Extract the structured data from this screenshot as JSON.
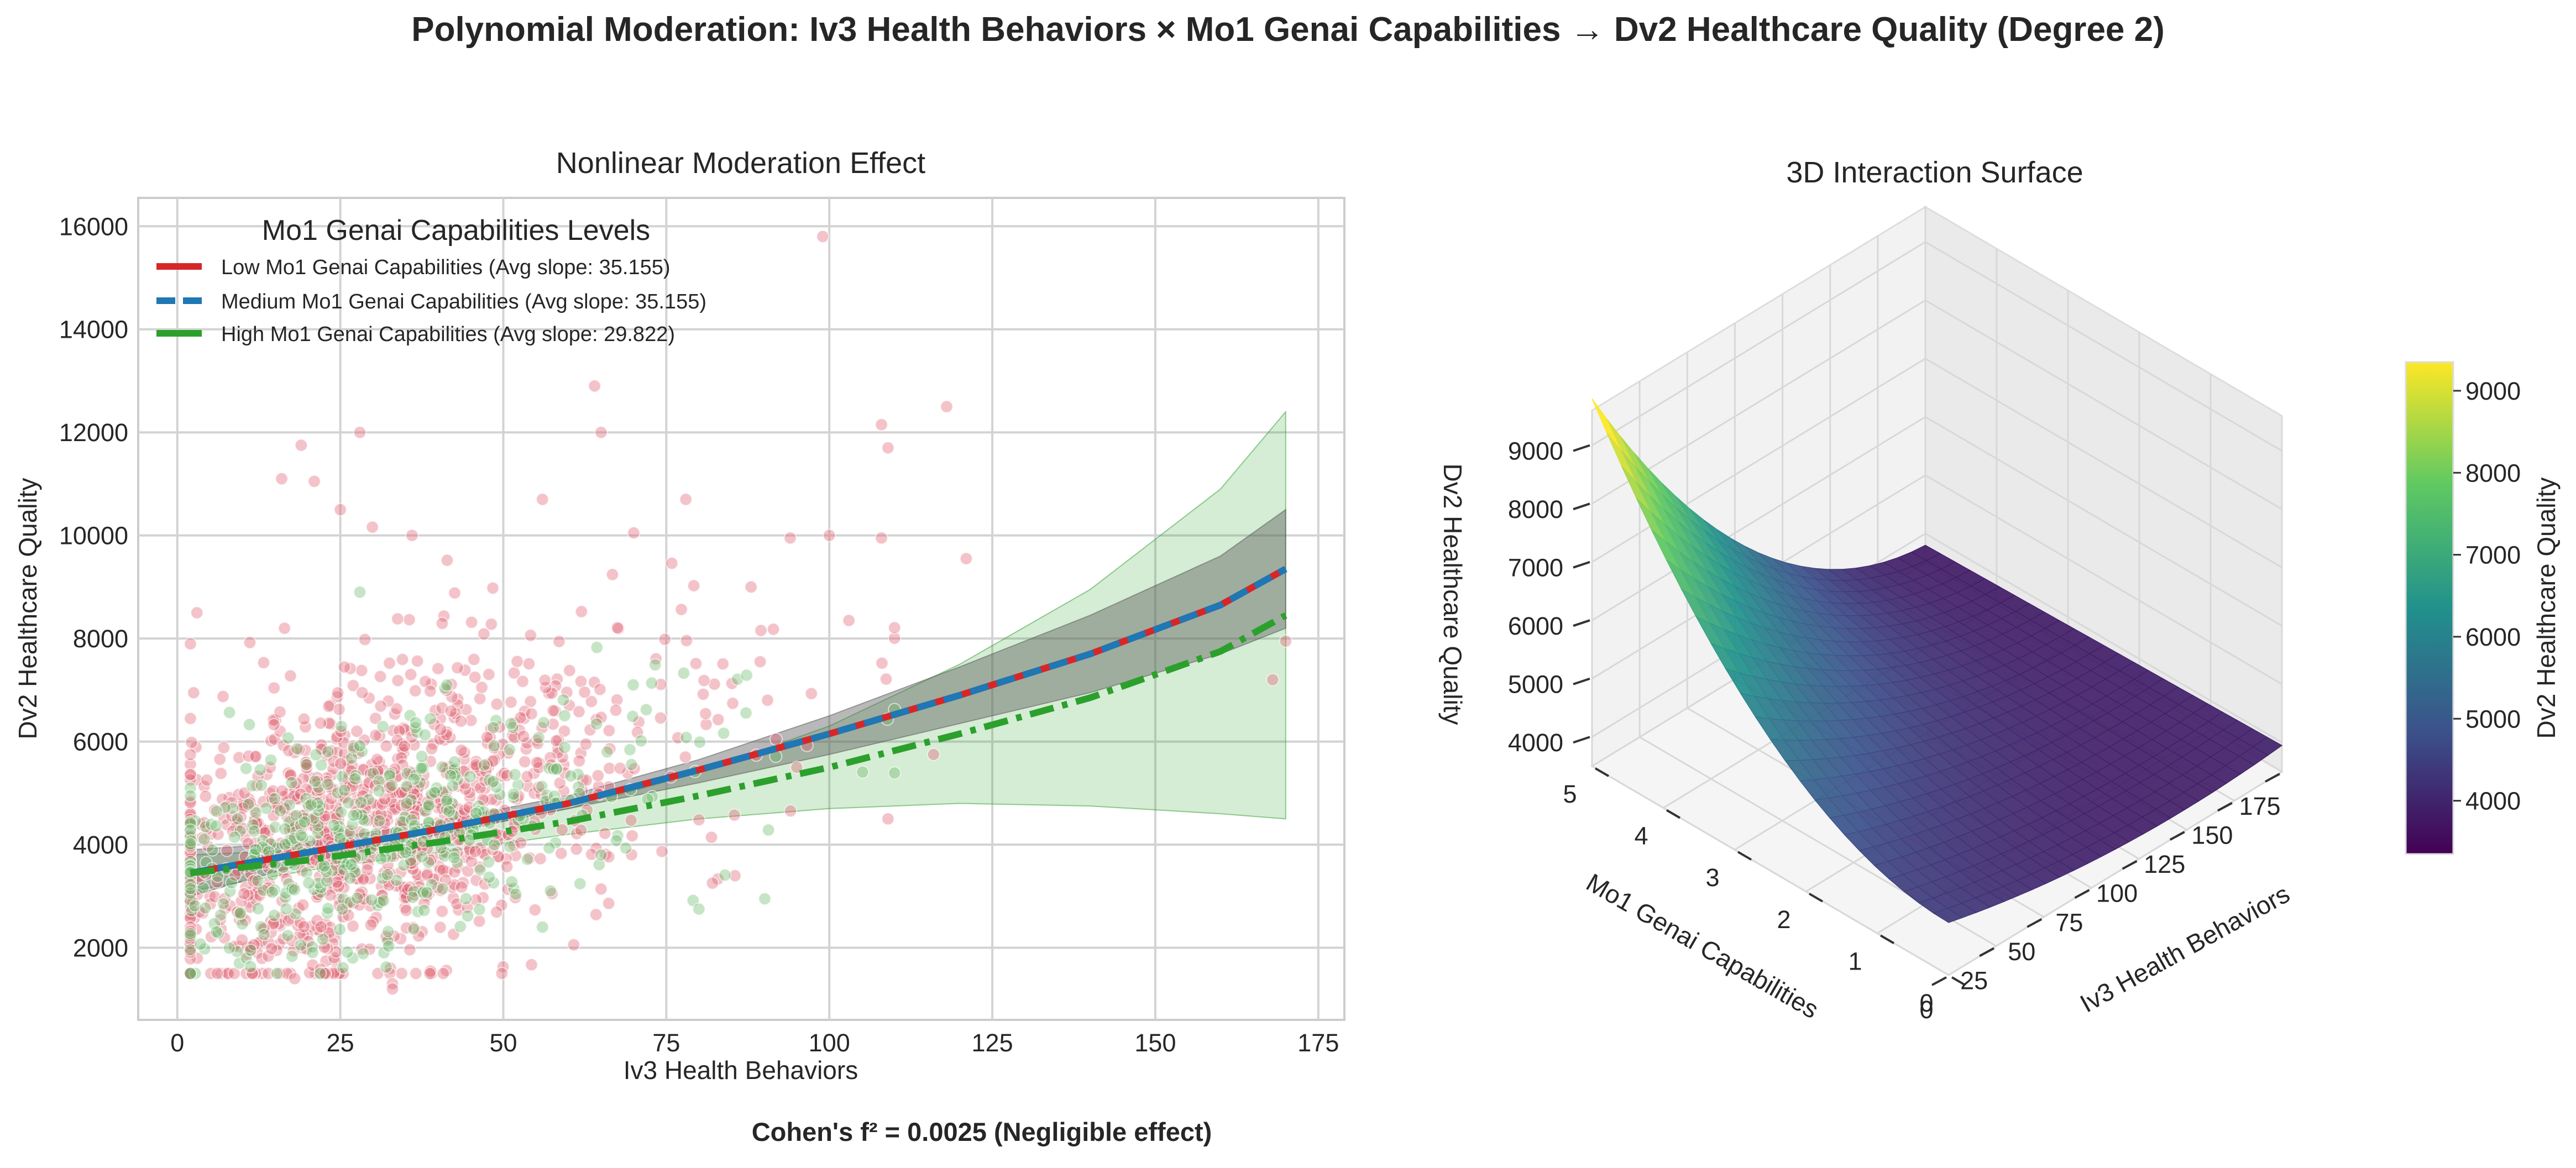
{
  "figure": {
    "title": "Polynomial Moderation: Iv3 Health Behaviors × Mo1 Genai Capabilities → Dv2 Healthcare Quality (Degree 2)",
    "footer": "Cohen's f² = 0.0025 (Negligible effect)"
  },
  "chart_data": [
    {
      "type": "line",
      "title": "Nonlinear Moderation Effect",
      "xlabel": "Iv3 Health Behaviors",
      "ylabel": "Dv2 Healthcare Quality",
      "xlim": [
        -6,
        179
      ],
      "ylim": [
        600,
        16550
      ],
      "xticks": [
        0,
        25,
        50,
        75,
        100,
        125,
        150,
        175
      ],
      "yticks": [
        2000,
        4000,
        6000,
        8000,
        10000,
        12000,
        14000,
        16000
      ],
      "grid": true,
      "legend": {
        "title": "Mo1 Genai Capabilities Levels",
        "placement": "upper-left"
      },
      "series": [
        {
          "name": "Low Mo1 Genai Capabilities (Avg slope: 35.155)",
          "color": "#d62728",
          "dash": "solid",
          "x": [
            2,
            20,
            40,
            60,
            80,
            100,
            120,
            140,
            160,
            170
          ],
          "y": [
            3450,
            3850,
            4300,
            4800,
            5450,
            6150,
            6900,
            7700,
            8650,
            9350
          ],
          "ci_lower": [
            3000,
            3650,
            4200,
            4700,
            5200,
            5750,
            6350,
            6950,
            7700,
            8200
          ],
          "ci_upper": [
            3900,
            4050,
            4450,
            4950,
            5650,
            6500,
            7450,
            8450,
            9600,
            10500
          ]
        },
        {
          "name": "Medium Mo1 Genai Capabilities (Avg slope: 35.155)",
          "color": "#1f77b4",
          "dash": "dashed",
          "x": [
            2,
            20,
            40,
            60,
            80,
            100,
            120,
            140,
            160,
            170
          ],
          "y": [
            3450,
            3850,
            4300,
            4800,
            5450,
            6150,
            6900,
            7700,
            8650,
            9350
          ]
        },
        {
          "name": "High Mo1 Genai Capabilities (Avg slope: 29.822)",
          "color": "#2ca02c",
          "dash": "dashdot",
          "x": [
            2,
            20,
            40,
            60,
            80,
            100,
            120,
            140,
            160,
            170
          ],
          "y": [
            3450,
            3700,
            4050,
            4450,
            4950,
            5500,
            6150,
            6850,
            7750,
            8450
          ],
          "ci_lower": [
            3100,
            3500,
            3850,
            4200,
            4500,
            4700,
            4800,
            4750,
            4600,
            4500
          ],
          "ci_upper": [
            3800,
            3900,
            4250,
            4700,
            5400,
            6300,
            7500,
            8950,
            10900,
            12400
          ]
        }
      ],
      "scatter_groups": [
        {
          "name": "Low",
          "color": "#e06070",
          "count": 1100,
          "outliers": [
            [
              99,
              15800
            ],
            [
              64,
              12900
            ],
            [
              28,
              12000
            ],
            [
              65,
              12000
            ],
            [
              108,
              12150
            ],
            [
              118,
              12500
            ],
            [
              109,
              11700
            ],
            [
              19,
              11750
            ],
            [
              21,
              11050
            ],
            [
              16,
              11100
            ],
            [
              56,
              10700
            ],
            [
              25,
              10500
            ],
            [
              78,
              10700
            ],
            [
              100,
              10000
            ],
            [
              108,
              9950
            ],
            [
              121,
              9550
            ],
            [
              94,
              9950
            ],
            [
              36,
              10000
            ],
            [
              70,
              10050
            ],
            [
              88,
              9000
            ],
            [
              170,
              7950
            ],
            [
              168,
              7200
            ],
            [
              109,
              4500
            ],
            [
              3,
              8500
            ],
            [
              33,
              1300
            ],
            [
              33,
              1200
            ],
            [
              18,
              1400
            ],
            [
              95,
              5500
            ],
            [
              116,
              5750
            ],
            [
              103,
              8350
            ]
          ]
        },
        {
          "name": "High",
          "color": "#6ab96a",
          "count": 450,
          "outliers": [
            [
              28,
              8900
            ],
            [
              80,
              2750
            ],
            [
              65,
              3800
            ],
            [
              56,
              2400
            ]
          ]
        }
      ]
    },
    {
      "type": "surface",
      "title": "3D Interaction Surface",
      "xlabel": "Iv3 Health Behaviors",
      "ylabel": "Mo1 Genai Capabilities",
      "zlabel": "Dv2 Healthcare Quality",
      "xticks": [
        0,
        25,
        50,
        75,
        100,
        125,
        150,
        175
      ],
      "yticks": [
        0,
        1,
        2,
        3,
        4,
        5
      ],
      "zticks": [
        4000,
        5000,
        6000,
        7000,
        8000,
        9000
      ],
      "xlim": [
        0,
        175
      ],
      "ylim": [
        0,
        5
      ],
      "zlim": [
        3500,
        9300
      ],
      "colormap": "viridis",
      "colorbar": {
        "label": "Dv2 Healthcare Quality",
        "ticks": [
          4000,
          5000,
          6000,
          7000,
          8000,
          9000
        ],
        "range": [
          3350,
          9350
        ]
      }
    }
  ]
}
